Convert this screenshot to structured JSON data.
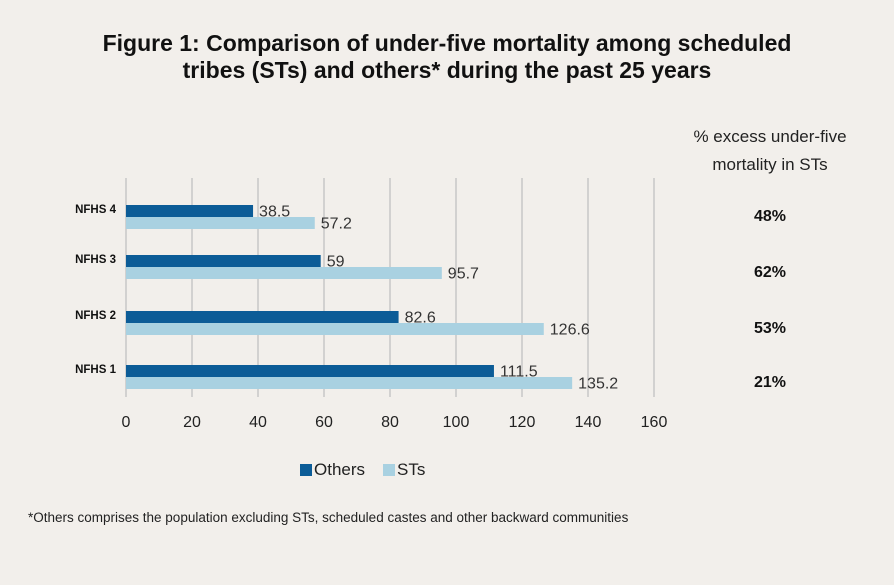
{
  "title": {
    "line1": "Figure 1: Comparison of under-five mortality among scheduled",
    "line2": "tribes (STs) and others* during the past 25 years"
  },
  "side_panel": {
    "header_line1": "% excess under-five",
    "header_line2": "mortality in STs",
    "values": [
      "48%",
      "62%",
      "53%",
      "21%"
    ]
  },
  "legend": {
    "others": "Others",
    "sts": "STs"
  },
  "footnote": "*Others comprises the population excluding STs, scheduled castes and other backward communities",
  "colors": {
    "others": "#0c5c97",
    "sts": "#a9d1e1",
    "grid": "#c7c7c7",
    "background": "#f2efeb"
  },
  "chart_data": {
    "type": "bar",
    "orientation": "horizontal",
    "categories": [
      "NFHS 4",
      "NFHS 3",
      "NFHS 2",
      "NFHS 1"
    ],
    "series": [
      {
        "name": "Others",
        "values": [
          38.5,
          59,
          82.6,
          111.5
        ],
        "labels": [
          "38.5",
          "59",
          "82.6",
          "111.5"
        ]
      },
      {
        "name": "STs",
        "values": [
          57.2,
          95.7,
          126.6,
          135.2
        ],
        "labels": [
          "57.2",
          "95.7",
          "126.6",
          "135.2"
        ]
      }
    ],
    "xlim": [
      0,
      160
    ],
    "xticks": [
      "0",
      "20",
      "40",
      "60",
      "80",
      "100",
      "120",
      "140",
      "160"
    ],
    "grid": true
  }
}
